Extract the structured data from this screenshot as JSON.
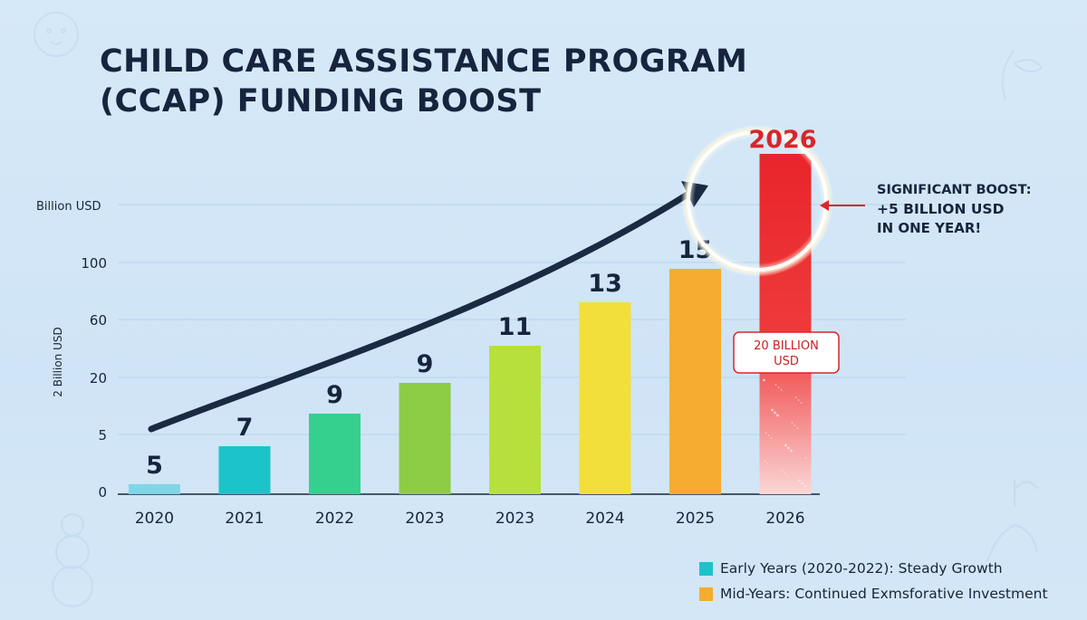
{
  "chart_data": {
    "type": "bar",
    "title_lines": [
      "CHILD CARE ASSISTANCE PROGRAM",
      "(CCAP) FUNDING BOOST"
    ],
    "unit_label": "Billion USD",
    "ylabel": "2 Billion USD",
    "yticks": [
      "0",
      "5",
      "20",
      "60",
      "100"
    ],
    "categories": [
      "2020",
      "2021",
      "2022",
      "2023",
      "2023",
      "2024",
      "2025",
      "2026"
    ],
    "values": [
      5,
      7,
      9,
      9,
      11,
      13,
      15,
      20
    ],
    "value_labels": [
      "5",
      "7",
      "9",
      "9",
      "11",
      "13",
      "15",
      ""
    ],
    "colors": [
      "#7fd6e6",
      "#1cc4c9",
      "#35d08e",
      "#8dcc45",
      "#b8e03c",
      "#f3df3a",
      "#f5ac30",
      "#e8252a"
    ],
    "grid": true,
    "trend_arrow": true,
    "highlight": {
      "year_label": "2026",
      "bar_label_lines": [
        "20 BILLION",
        "USD"
      ],
      "note_lines": [
        "SIGNIFICANT BOOST:",
        "+5 BILLION USD",
        "IN ONE YEAR!"
      ],
      "color": "#e8252a"
    },
    "legend": [
      {
        "label": "Early Years (2020-2022): Steady Growth",
        "color": "#1cc4c9"
      },
      {
        "label": "Mid-Years: Continued Exmsforative Investment",
        "color": "#f5ac30"
      }
    ]
  }
}
